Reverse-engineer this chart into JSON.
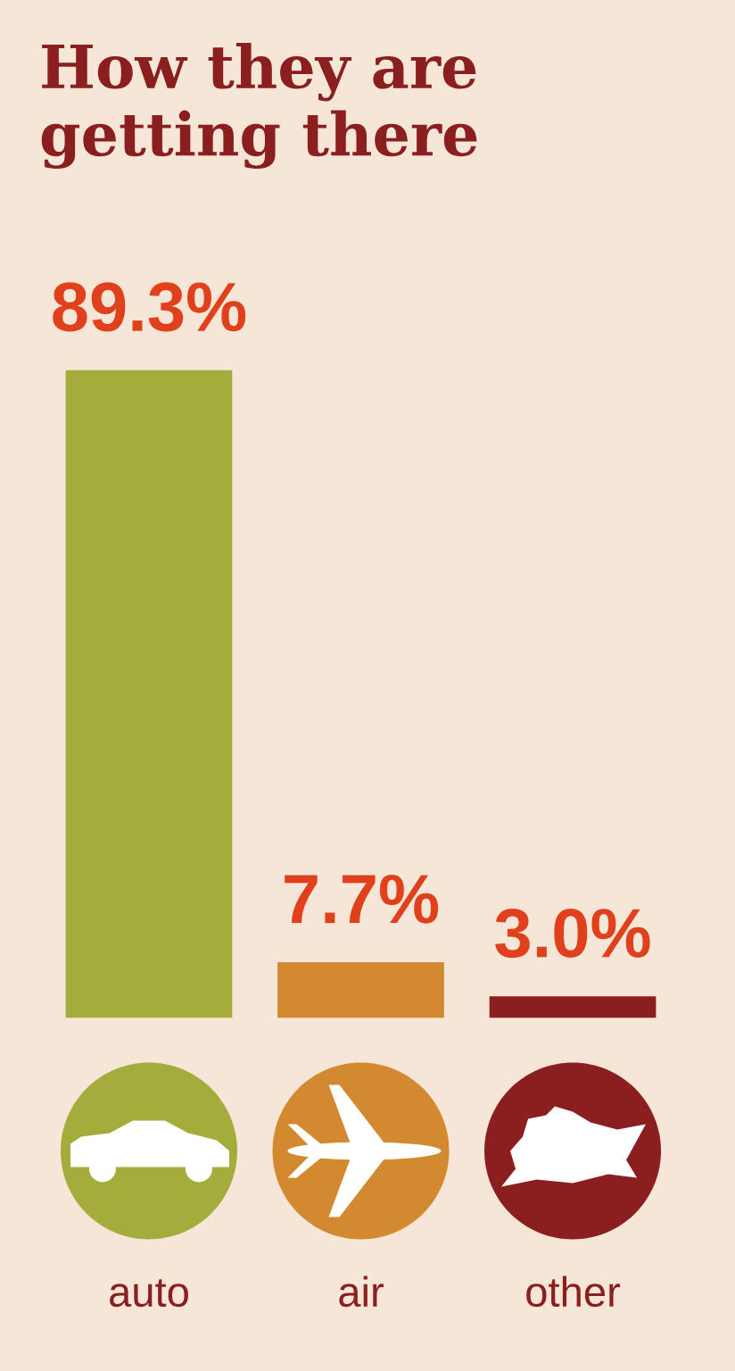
{
  "chart_data": {
    "type": "bar",
    "title": "How they are\ngetting there",
    "categories": [
      "auto",
      "air",
      "other"
    ],
    "values": [
      89.3,
      7.7,
      3.0
    ],
    "colors": [
      "#a4ad3b",
      "#d3892f",
      "#8b1f1f"
    ],
    "value_labels": [
      "89.3%",
      "7.7%",
      "3.0%"
    ]
  }
}
